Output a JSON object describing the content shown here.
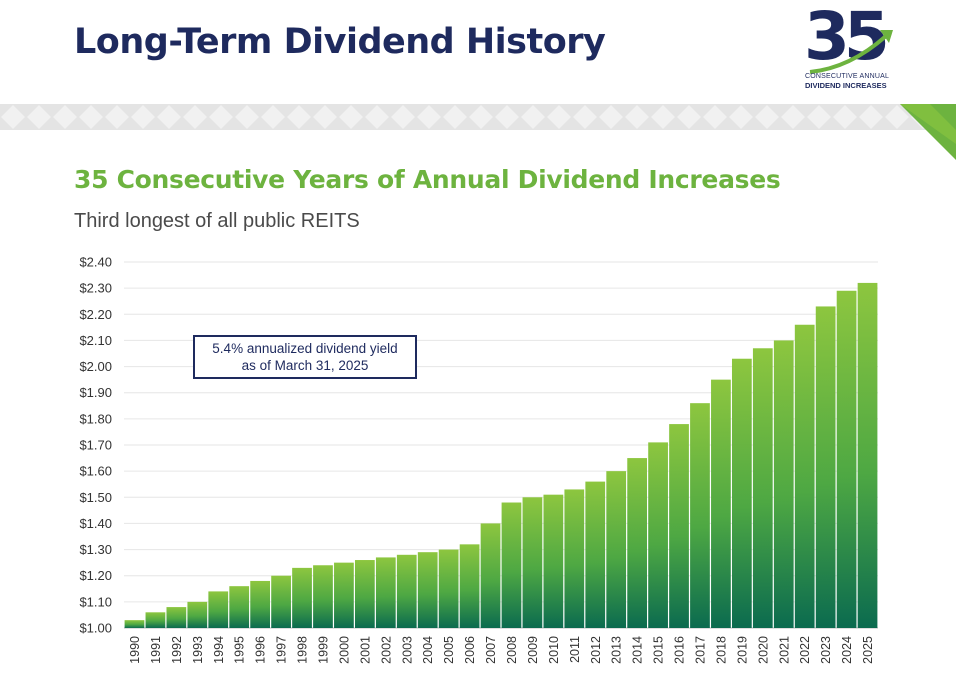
{
  "header": {
    "title": "Long-Term Dividend History"
  },
  "logo": {
    "number": "35",
    "line1": "CONSECUTIVE ANNUAL",
    "line2": "DIVIDEND INCREASES"
  },
  "section": {
    "headline": "35 Consecutive Years of Annual Dividend Increases",
    "subheadline": "Third longest of all public REITS"
  },
  "callout": {
    "text": "5.4% annualized dividend yield\nas of March 31, 2025"
  },
  "colors": {
    "navy": "#1e2a5e",
    "brand_green": "#6db33f",
    "bar_top": "#8dc63f",
    "bar_bottom": "#0b6b4f"
  },
  "chart_data": {
    "type": "bar",
    "title": "",
    "xlabel": "",
    "ylabel": "",
    "ylim": [
      1.0,
      2.4
    ],
    "y_ticks": [
      "$1.00",
      "$1.10",
      "$1.20",
      "$1.30",
      "$1.40",
      "$1.50",
      "$1.60",
      "$1.70",
      "$1.80",
      "$1.90",
      "$2.00",
      "$2.10",
      "$2.20",
      "$2.30",
      "$2.40"
    ],
    "grid": true,
    "categories": [
      "1990",
      "1991",
      "1992",
      "1993",
      "1994",
      "1995",
      "1996",
      "1997",
      "1998",
      "1999",
      "2000",
      "2001",
      "2002",
      "2003",
      "2004",
      "2005",
      "2006",
      "2007",
      "2008",
      "2009",
      "2010",
      "2011",
      "2012",
      "2013",
      "2014",
      "2015",
      "2016",
      "2017",
      "2018",
      "2019",
      "2020",
      "2021",
      "2022",
      "2023",
      "2024",
      "2025"
    ],
    "values": [
      1.03,
      1.06,
      1.08,
      1.1,
      1.14,
      1.16,
      1.18,
      1.2,
      1.23,
      1.24,
      1.25,
      1.26,
      1.27,
      1.28,
      1.29,
      1.3,
      1.32,
      1.4,
      1.48,
      1.5,
      1.51,
      1.53,
      1.56,
      1.6,
      1.65,
      1.71,
      1.78,
      1.86,
      1.95,
      2.03,
      2.07,
      2.1,
      2.16,
      2.23,
      2.29,
      2.32
    ]
  }
}
